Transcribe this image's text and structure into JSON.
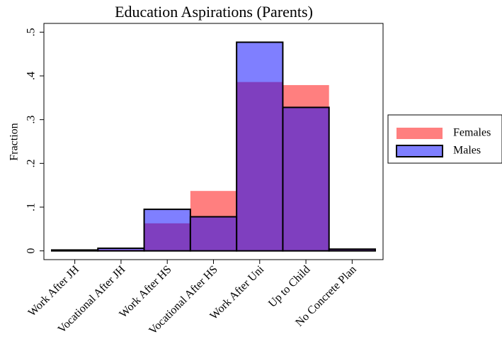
{
  "chart_data": {
    "type": "bar",
    "title": "Education Aspirations (Parents)",
    "y_label": "Fraction",
    "categories": [
      "Work After JH",
      "Vocational After JH",
      "Work After HS",
      "Vocational After HS",
      "Work After Uni",
      "Up to Child",
      "No Concrete Plan"
    ],
    "series": [
      {
        "name": "Females",
        "color": "rgba(255,0,0,0.5)",
        "values": [
          0,
          0.003,
          0.063,
          0.137,
          0.386,
          0.379,
          0.003
        ]
      },
      {
        "name": "Males",
        "color": "rgba(0,0,255,0.5)",
        "values": [
          0.002,
          0.006,
          0.095,
          0.078,
          0.477,
          0.328,
          0.004
        ]
      }
    ],
    "ylim": [
      -0.02,
      0.52
    ],
    "yticks": [
      0,
      {
        "value": 0.1,
        "label": ".1"
      },
      {
        "value": 0.2,
        "label": ".2"
      },
      {
        "value": 0.3,
        "label": ".3"
      },
      {
        "value": 0.4,
        "label": ".4"
      },
      {
        "value": 0.5,
        "label": ".5"
      }
    ],
    "legend": "right"
  }
}
